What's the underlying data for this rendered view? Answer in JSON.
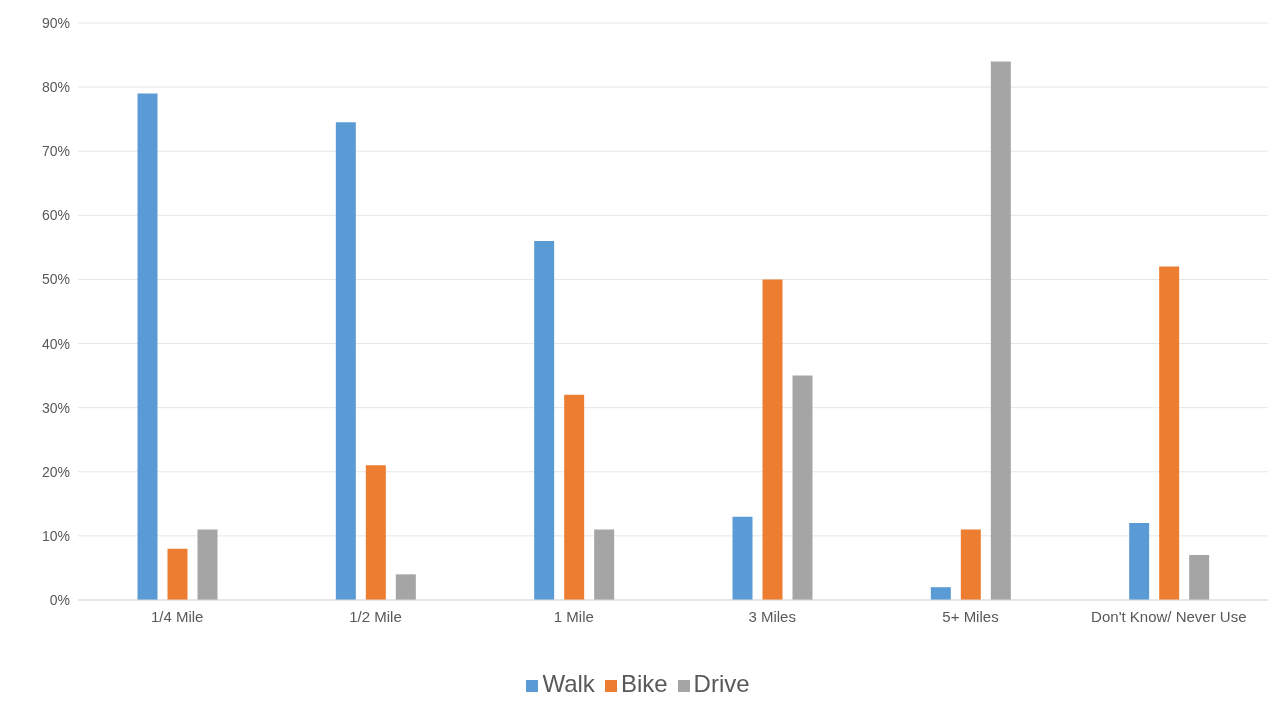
{
  "chart_data": {
    "type": "bar",
    "categories": [
      "1/4 Mile",
      "1/2 Mile",
      "1 Mile",
      "3 Miles",
      "5+ Miles",
      "Don't Know/ Never Use"
    ],
    "series": [
      {
        "name": "Walk",
        "color": "#5b9bd5",
        "values": [
          79,
          74.5,
          56,
          13,
          2,
          12
        ]
      },
      {
        "name": "Bike",
        "color": "#ed7d31",
        "values": [
          8,
          21,
          32,
          50,
          11,
          52
        ]
      },
      {
        "name": "Drive",
        "color": "#a5a5a5",
        "values": [
          11,
          4,
          11,
          35,
          84,
          7
        ]
      }
    ],
    "ylim": [
      0,
      90
    ],
    "yticks": [
      {
        "value": 0,
        "label": "0%"
      },
      {
        "value": 10,
        "label": "10%"
      },
      {
        "value": 20,
        "label": "20%"
      },
      {
        "value": 30,
        "label": "30%"
      },
      {
        "value": 40,
        "label": "40%"
      },
      {
        "value": 50,
        "label": "50%"
      },
      {
        "value": 60,
        "label": "60%"
      },
      {
        "value": 70,
        "label": "70%"
      },
      {
        "value": 80,
        "label": "80%"
      },
      {
        "value": 90,
        "label": "90%"
      }
    ],
    "grid": "y",
    "legend": "bottom"
  }
}
